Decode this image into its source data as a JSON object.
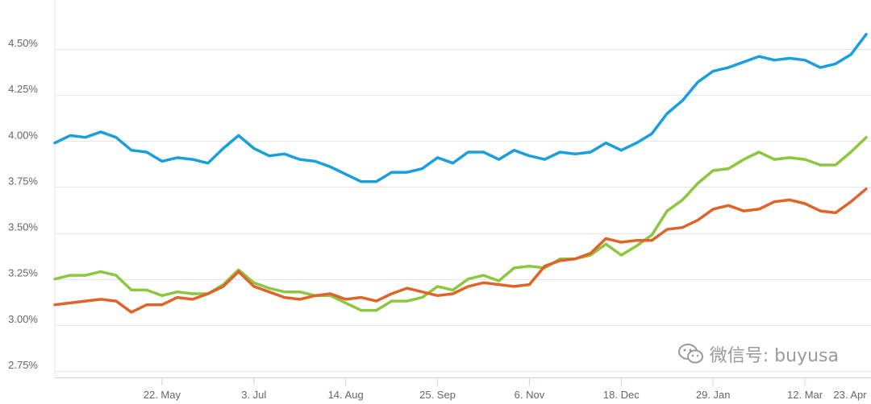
{
  "chart_data": {
    "type": "line",
    "title": "",
    "xlabel": "",
    "ylabel": "",
    "ylim": [
      2.75,
      4.6
    ],
    "y_ticks": [
      "2.75%",
      "3.00%",
      "3.25%",
      "3.50%",
      "3.75%",
      "4.00%",
      "4.25%",
      "4.50%"
    ],
    "y_tick_values": [
      2.75,
      3.0,
      3.25,
      3.5,
      3.75,
      4.0,
      4.25,
      4.5
    ],
    "x_tick_labels": [
      "22. May",
      "3. Jul",
      "14. Aug",
      "25. Sep",
      "6. Nov",
      "18. Dec",
      "29. Jan",
      "12. Mar",
      "23. Apr"
    ],
    "x_tick_index": [
      7,
      13,
      19,
      25,
      31,
      37,
      43,
      49,
      55
    ],
    "grid": true,
    "legend": "none",
    "series": [
      {
        "color": "#1a9fde",
        "values": [
          3.99,
          4.03,
          4.02,
          4.05,
          4.02,
          3.95,
          3.94,
          3.89,
          3.91,
          3.9,
          3.88,
          3.96,
          4.03,
          3.96,
          3.92,
          3.93,
          3.9,
          3.89,
          3.86,
          3.82,
          3.78,
          3.78,
          3.83,
          3.83,
          3.85,
          3.91,
          3.88,
          3.94,
          3.94,
          3.9,
          3.95,
          3.92,
          3.9,
          3.94,
          3.93,
          3.94,
          3.99,
          3.95,
          3.99,
          4.04,
          4.15,
          4.22,
          4.32,
          4.38,
          4.4,
          4.43,
          4.46,
          4.44,
          4.45,
          4.44,
          4.4,
          4.42,
          4.47,
          4.58
        ]
      },
      {
        "color": "#8dc63f",
        "values": [
          3.25,
          3.27,
          3.27,
          3.29,
          3.27,
          3.19,
          3.19,
          3.16,
          3.18,
          3.17,
          3.17,
          3.22,
          3.3,
          3.23,
          3.2,
          3.18,
          3.18,
          3.16,
          3.16,
          3.12,
          3.08,
          3.08,
          3.13,
          3.13,
          3.15,
          3.21,
          3.19,
          3.25,
          3.27,
          3.24,
          3.31,
          3.32,
          3.31,
          3.36,
          3.36,
          3.38,
          3.44,
          3.38,
          3.43,
          3.49,
          3.62,
          3.68,
          3.77,
          3.84,
          3.85,
          3.9,
          3.94,
          3.9,
          3.91,
          3.9,
          3.87,
          3.87,
          3.94,
          4.02
        ]
      },
      {
        "color": "#e0632a",
        "values": [
          3.11,
          3.12,
          3.13,
          3.14,
          3.13,
          3.07,
          3.11,
          3.11,
          3.15,
          3.14,
          3.17,
          3.21,
          3.29,
          3.21,
          3.18,
          3.15,
          3.14,
          3.16,
          3.17,
          3.14,
          3.15,
          3.13,
          3.17,
          3.2,
          3.18,
          3.16,
          3.17,
          3.21,
          3.23,
          3.22,
          3.21,
          3.22,
          3.32,
          3.35,
          3.36,
          3.39,
          3.47,
          3.45,
          3.46,
          3.46,
          3.52,
          3.53,
          3.57,
          3.63,
          3.65,
          3.62,
          3.63,
          3.67,
          3.68,
          3.66,
          3.62,
          3.61,
          3.67,
          3.74
        ]
      }
    ]
  },
  "watermark": {
    "icon": "wechat-icon",
    "text": "微信号: buyusa"
  }
}
